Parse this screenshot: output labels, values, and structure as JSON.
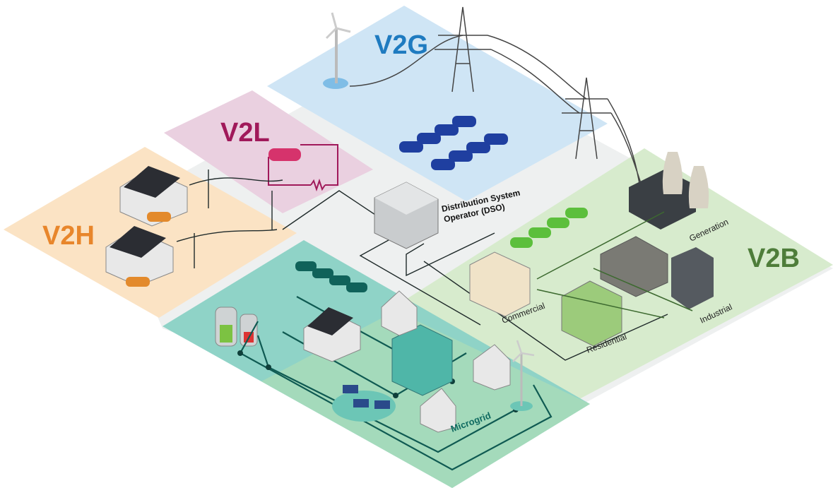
{
  "zones": [
    {
      "label": "V2G"
    },
    {
      "label": "V2L"
    },
    {
      "label": "V2H"
    },
    {
      "label": "V2B"
    }
  ],
  "dso": {
    "label_lines": [
      "Distribution System",
      "Operator (DSO)"
    ]
  },
  "nodes": [
    {
      "label": "Generation"
    },
    {
      "label": "Commercial"
    },
    {
      "label": "Residential"
    },
    {
      "label": "Industrial"
    },
    {
      "label": "Microgrid"
    }
  ]
}
